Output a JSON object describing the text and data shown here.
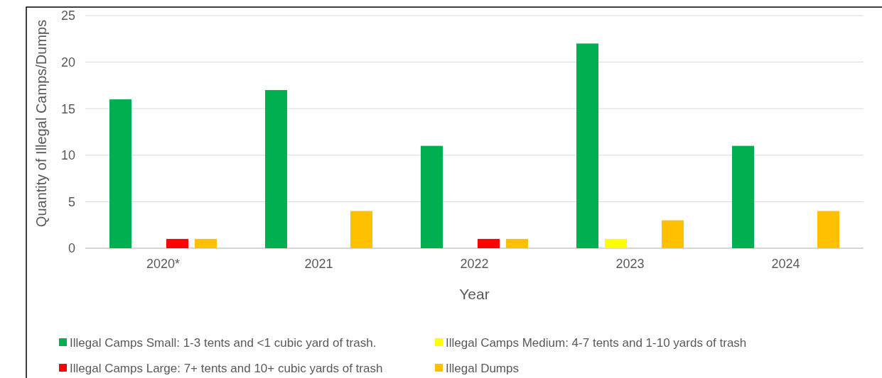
{
  "chart_data": {
    "type": "bar",
    "xlabel": "Year",
    "ylabel": "Quantity of Illegal Camps/Dumps",
    "categories": [
      "2020*",
      "2021",
      "2022",
      "2023",
      "2024"
    ],
    "series": [
      {
        "name": "Illegal Camps Small: 1-3 tents and <1 cubic yard of trash.",
        "color": "#00b050",
        "values": [
          16,
          17,
          11,
          22,
          11
        ]
      },
      {
        "name": "Illegal Camps Medium: 4-7 tents and 1-10 yards of trash",
        "color": "#ffff00",
        "values": [
          0,
          0,
          0,
          1,
          0
        ]
      },
      {
        "name": "Illegal Camps Large: 7+ tents and 10+ cubic yards of trash",
        "color": "#ff0000",
        "values": [
          1,
          0,
          1,
          0,
          0
        ]
      },
      {
        "name": "Illegal Dumps",
        "color": "#ffc000",
        "values": [
          1,
          4,
          1,
          3,
          4
        ]
      }
    ],
    "ylim": [
      0,
      25
    ],
    "yticks": [
      0,
      5,
      10,
      15,
      20,
      25
    ],
    "grid": "y",
    "legend": "bottom"
  }
}
